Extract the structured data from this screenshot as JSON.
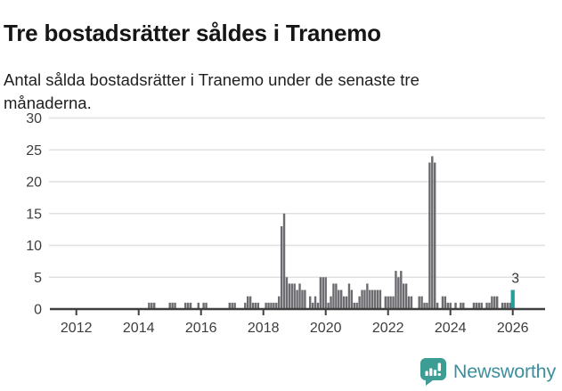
{
  "header": {
    "title": "Tre bostadsrätter såldes i Tranemo",
    "subtitle_lines": [
      "Antal sålda bostadsrätter i Tranemo under de senaste tre",
      "månaderna."
    ]
  },
  "chart_data": {
    "type": "bar",
    "title": "Tre bostadsrätter såldes i Tranemo",
    "subtitle": "Antal sålda bostadsrätter i Tranemo under de senaste tre månaderna.",
    "ylabel": "",
    "xlabel": "",
    "ylim": [
      0,
      30
    ],
    "yticks": [
      "0",
      "5",
      "10",
      "15",
      "20",
      "25",
      "30"
    ],
    "xticks": [
      "2012",
      "2014",
      "2016",
      "2018",
      "2020",
      "2022",
      "2024",
      "2026"
    ],
    "x_range_start": "2012-01",
    "x_range_end": "2026-01",
    "note": "monthly rolling 3-month sales counts; months not listed are 0",
    "grid": "horizontal",
    "bar_color": "#6b6b70",
    "highlight_color": "#239f9f",
    "highlight_month": "2026-01",
    "annotation": {
      "text": "3",
      "month": "2026-01"
    },
    "points": [
      [
        "2014-05",
        1
      ],
      [
        "2014-06",
        1
      ],
      [
        "2014-07",
        1
      ],
      [
        "2015-01",
        1
      ],
      [
        "2015-02",
        1
      ],
      [
        "2015-03",
        1
      ],
      [
        "2015-07",
        1
      ],
      [
        "2015-08",
        1
      ],
      [
        "2015-09",
        1
      ],
      [
        "2015-12",
        1
      ],
      [
        "2016-02",
        1
      ],
      [
        "2016-03",
        1
      ],
      [
        "2016-12",
        1
      ],
      [
        "2017-01",
        1
      ],
      [
        "2017-02",
        1
      ],
      [
        "2017-06",
        1
      ],
      [
        "2017-07",
        2
      ],
      [
        "2017-08",
        2
      ],
      [
        "2017-09",
        1
      ],
      [
        "2017-10",
        1
      ],
      [
        "2017-11",
        1
      ],
      [
        "2018-02",
        1
      ],
      [
        "2018-03",
        1
      ],
      [
        "2018-04",
        1
      ],
      [
        "2018-05",
        1
      ],
      [
        "2018-06",
        1
      ],
      [
        "2018-07",
        2
      ],
      [
        "2018-08",
        13
      ],
      [
        "2018-09",
        15
      ],
      [
        "2018-10",
        5
      ],
      [
        "2018-11",
        4
      ],
      [
        "2018-12",
        4
      ],
      [
        "2019-01",
        4
      ],
      [
        "2019-02",
        3
      ],
      [
        "2019-03",
        4
      ],
      [
        "2019-04",
        3
      ],
      [
        "2019-05",
        3
      ],
      [
        "2019-07",
        2
      ],
      [
        "2019-08",
        1
      ],
      [
        "2019-09",
        2
      ],
      [
        "2019-10",
        1
      ],
      [
        "2019-11",
        5
      ],
      [
        "2019-12",
        5
      ],
      [
        "2020-01",
        5
      ],
      [
        "2020-02",
        1
      ],
      [
        "2020-03",
        2
      ],
      [
        "2020-04",
        4
      ],
      [
        "2020-05",
        4
      ],
      [
        "2020-06",
        3
      ],
      [
        "2020-07",
        3
      ],
      [
        "2020-08",
        2
      ],
      [
        "2020-09",
        2
      ],
      [
        "2020-10",
        4
      ],
      [
        "2020-11",
        3
      ],
      [
        "2020-12",
        1
      ],
      [
        "2021-01",
        1
      ],
      [
        "2021-02",
        2
      ],
      [
        "2021-03",
        3
      ],
      [
        "2021-04",
        3
      ],
      [
        "2021-05",
        4
      ],
      [
        "2021-06",
        3
      ],
      [
        "2021-07",
        3
      ],
      [
        "2021-08",
        3
      ],
      [
        "2021-09",
        3
      ],
      [
        "2021-10",
        3
      ],
      [
        "2021-12",
        2
      ],
      [
        "2022-01",
        2
      ],
      [
        "2022-02",
        2
      ],
      [
        "2022-03",
        2
      ],
      [
        "2022-04",
        6
      ],
      [
        "2022-05",
        5
      ],
      [
        "2022-06",
        6
      ],
      [
        "2022-07",
        4
      ],
      [
        "2022-08",
        4
      ],
      [
        "2022-09",
        2
      ],
      [
        "2022-10",
        2
      ],
      [
        "2023-01",
        2
      ],
      [
        "2023-02",
        2
      ],
      [
        "2023-03",
        1
      ],
      [
        "2023-04",
        1
      ],
      [
        "2023-05",
        23
      ],
      [
        "2023-06",
        24
      ],
      [
        "2023-07",
        23
      ],
      [
        "2023-08",
        1
      ],
      [
        "2023-10",
        2
      ],
      [
        "2023-11",
        2
      ],
      [
        "2023-12",
        1
      ],
      [
        "2024-01",
        1
      ],
      [
        "2024-03",
        1
      ],
      [
        "2024-05",
        1
      ],
      [
        "2024-06",
        1
      ],
      [
        "2024-10",
        1
      ],
      [
        "2024-11",
        1
      ],
      [
        "2024-12",
        1
      ],
      [
        "2025-01",
        1
      ],
      [
        "2025-03",
        1
      ],
      [
        "2025-04",
        1
      ],
      [
        "2025-05",
        2
      ],
      [
        "2025-06",
        2
      ],
      [
        "2025-07",
        2
      ],
      [
        "2025-09",
        1
      ],
      [
        "2025-10",
        1
      ],
      [
        "2025-11",
        1
      ],
      [
        "2025-12",
        1
      ],
      [
        "2026-01",
        3
      ]
    ]
  },
  "colors": {
    "bar": "#6b6b70",
    "highlight": "#239f9f",
    "axis": "#3f3f3f",
    "grid": "#e0e0e0",
    "tick_label": "#3d3d3d",
    "annotation": "#333333",
    "logo_icon": "#3d9c93",
    "logo_text": "#3e8e9e"
  },
  "footer": {
    "brand": "Newsworthy"
  }
}
